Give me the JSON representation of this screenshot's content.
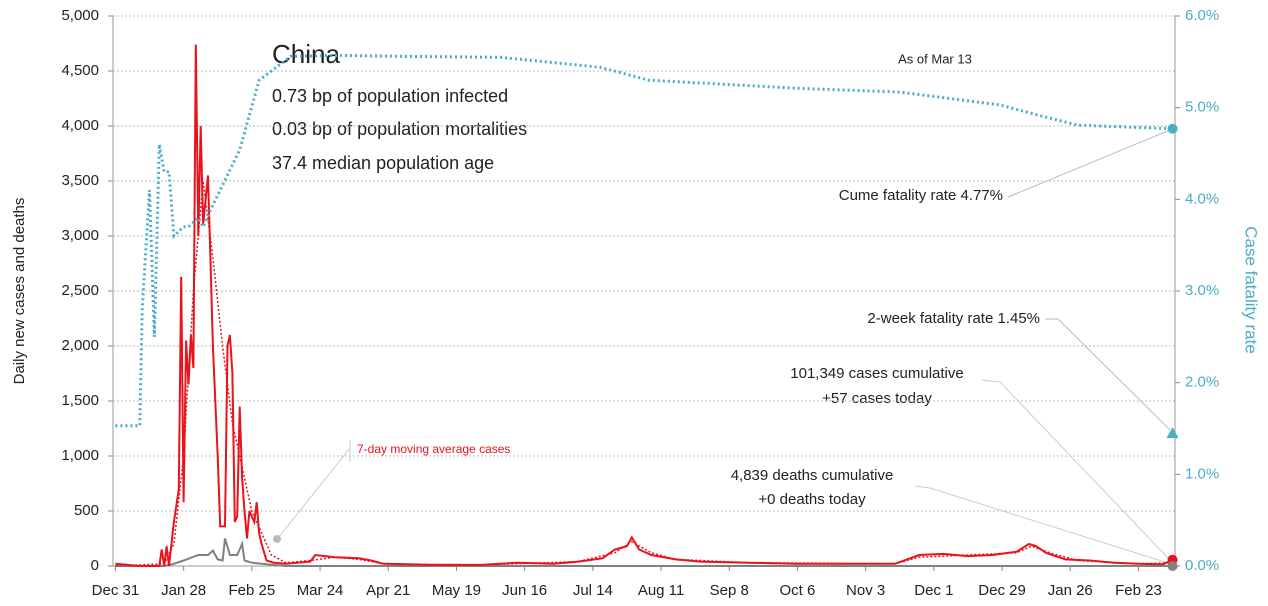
{
  "chart_data": {
    "type": "line",
    "title": "China",
    "notes": [
      "0.73 bp of population infected",
      "0.03 bp of population mortalities",
      "37.4 median population age"
    ],
    "y_label": "Daily new cases and deaths",
    "y2_label": "Case fatality rate",
    "annotations": [
      "As of Mar 13",
      "Cume fatality rate 4.77%",
      "2-week fatality rate 1.45%",
      "101,349 cases cumulative",
      "+57 cases today",
      "4,839 deaths cumulative",
      "+0 deaths today",
      "7-day moving average cases"
    ],
    "two_week_fatality_rate": 1.45,
    "xlim": [
      -1,
      435
    ],
    "xticks": [
      {
        "value": 0,
        "label": "Dec 31"
      },
      {
        "value": 28,
        "label": "Jan 28"
      },
      {
        "value": 56,
        "label": "Feb 25"
      },
      {
        "value": 84,
        "label": "Mar 24"
      },
      {
        "value": 112,
        "label": "Apr 21"
      },
      {
        "value": 140,
        "label": "May 19"
      },
      {
        "value": 168,
        "label": "Jun 16"
      },
      {
        "value": 196,
        "label": "Jul 14"
      },
      {
        "value": 224,
        "label": "Aug 11"
      },
      {
        "value": 252,
        "label": "Sep 8"
      },
      {
        "value": 280,
        "label": "Oct 6"
      },
      {
        "value": 308,
        "label": "Nov 3"
      },
      {
        "value": 336,
        "label": "Dec 1"
      },
      {
        "value": 364,
        "label": "Dec 29"
      },
      {
        "value": 392,
        "label": "Jan 26"
      },
      {
        "value": 420,
        "label": "Feb 23"
      }
    ],
    "ylim": [
      0,
      5000
    ],
    "yticks": [
      0,
      500,
      {
        "value": 1000,
        "label": "1,000"
      },
      {
        "value": 1500,
        "label": "1,500"
      },
      {
        "value": 2000,
        "label": "2,000"
      },
      {
        "value": 2500,
        "label": "2,500"
      },
      {
        "value": 3000,
        "label": "3,000"
      },
      {
        "value": 3500,
        "label": "3,500"
      },
      {
        "value": 4000,
        "label": "4,000"
      },
      {
        "value": 4500,
        "label": "4,500"
      },
      {
        "value": 5000,
        "label": "5,000"
      }
    ],
    "y2lim": [
      0,
      6
    ],
    "y2ticks": [
      {
        "value": 0,
        "label": "0.0%"
      },
      {
        "value": 1,
        "label": "1.0%"
      },
      {
        "value": 2,
        "label": "2.0%"
      },
      {
        "value": 3,
        "label": "3.0%"
      },
      {
        "value": 4,
        "label": "4.0%"
      },
      {
        "value": 5,
        "label": "5.0%"
      },
      {
        "value": 6,
        "label": "6.0%"
      }
    ],
    "grid": true,
    "series": [
      {
        "name": "Daily deaths",
        "color": "#808080",
        "dash": false,
        "x": [
          0,
          20,
          24,
          28,
          34,
          38,
          40,
          42,
          44,
          45,
          47,
          50,
          52,
          53,
          56,
          60,
          65,
          70,
          434
        ],
        "values": [
          0,
          0,
          20,
          50,
          100,
          100,
          140,
          60,
          50,
          250,
          100,
          100,
          200,
          50,
          30,
          20,
          10,
          0,
          0
        ]
      },
      {
        "name": "Daily cases",
        "color": "#e8131b",
        "dash": false,
        "x": [
          0,
          5,
          10,
          18,
          19,
          20,
          21,
          22,
          24,
          26,
          27,
          28,
          29,
          30,
          31,
          32,
          33,
          34,
          35,
          36,
          38,
          39,
          40,
          42,
          43,
          45,
          46,
          47,
          48,
          49,
          50,
          51,
          52,
          53,
          54,
          55,
          56,
          57,
          58,
          59,
          60,
          62,
          65,
          70,
          80,
          82,
          90,
          100,
          105,
          110,
          130,
          150,
          165,
          180,
          190,
          200,
          205,
          210,
          212,
          215,
          220,
          230,
          240,
          260,
          280,
          300,
          320,
          325,
          330,
          340,
          350,
          360,
          370,
          375,
          378,
          382,
          390,
          400,
          410,
          420,
          430,
          434
        ],
        "values": [
          20,
          10,
          0,
          0,
          150,
          0,
          180,
          0,
          400,
          700,
          2630,
          580,
          2050,
          1650,
          2100,
          1800,
          4740,
          3000,
          4000,
          3100,
          3550,
          2800,
          2000,
          1000,
          360,
          360,
          2000,
          2100,
          1750,
          400,
          450,
          1450,
          800,
          500,
          250,
          500,
          450,
          400,
          580,
          300,
          200,
          50,
          30,
          20,
          40,
          100,
          80,
          70,
          50,
          20,
          10,
          10,
          30,
          20,
          40,
          70,
          150,
          180,
          260,
          150,
          100,
          60,
          40,
          30,
          20,
          20,
          20,
          60,
          100,
          110,
          90,
          100,
          130,
          200,
          180,
          120,
          60,
          50,
          30,
          20,
          15,
          57
        ]
      },
      {
        "name": "7-day moving average cases",
        "color": "#e8131b",
        "dash": true,
        "x": [
          0,
          20,
          24,
          28,
          32,
          36,
          40,
          44,
          48,
          52,
          56,
          60,
          64,
          70,
          80,
          90,
          100,
          110,
          150,
          190,
          205,
          212,
          220,
          230,
          260,
          320,
          330,
          350,
          370,
          376,
          385,
          395,
          420,
          434
        ],
        "values": [
          0,
          20,
          200,
          1000,
          2500,
          3500,
          2800,
          2000,
          1300,
          900,
          500,
          300,
          100,
          30,
          50,
          80,
          60,
          20,
          10,
          40,
          120,
          220,
          120,
          60,
          30,
          20,
          80,
          100,
          120,
          180,
          110,
          50,
          20,
          30
        ]
      },
      {
        "name": "Case fatality rate",
        "color": "#4bacc6",
        "dash": true,
        "axis": "y2",
        "x": [
          0,
          10,
          11,
          14,
          16,
          18,
          20,
          22,
          24,
          28,
          30,
          34,
          36,
          39,
          51,
          59,
          72,
          92,
          117,
          158,
          199,
          219,
          281,
          322,
          363,
          383,
          395,
          434
        ],
        "values": [
          1.53,
          1.53,
          2.8,
          4.1,
          2.5,
          4.6,
          4.3,
          4.3,
          3.6,
          3.7,
          3.7,
          3.8,
          3.7,
          3.88,
          4.54,
          5.3,
          5.56,
          5.57,
          5.56,
          5.55,
          5.44,
          5.3,
          5.21,
          5.17,
          5.03,
          4.89,
          4.81,
          4.77
        ]
      }
    ]
  }
}
